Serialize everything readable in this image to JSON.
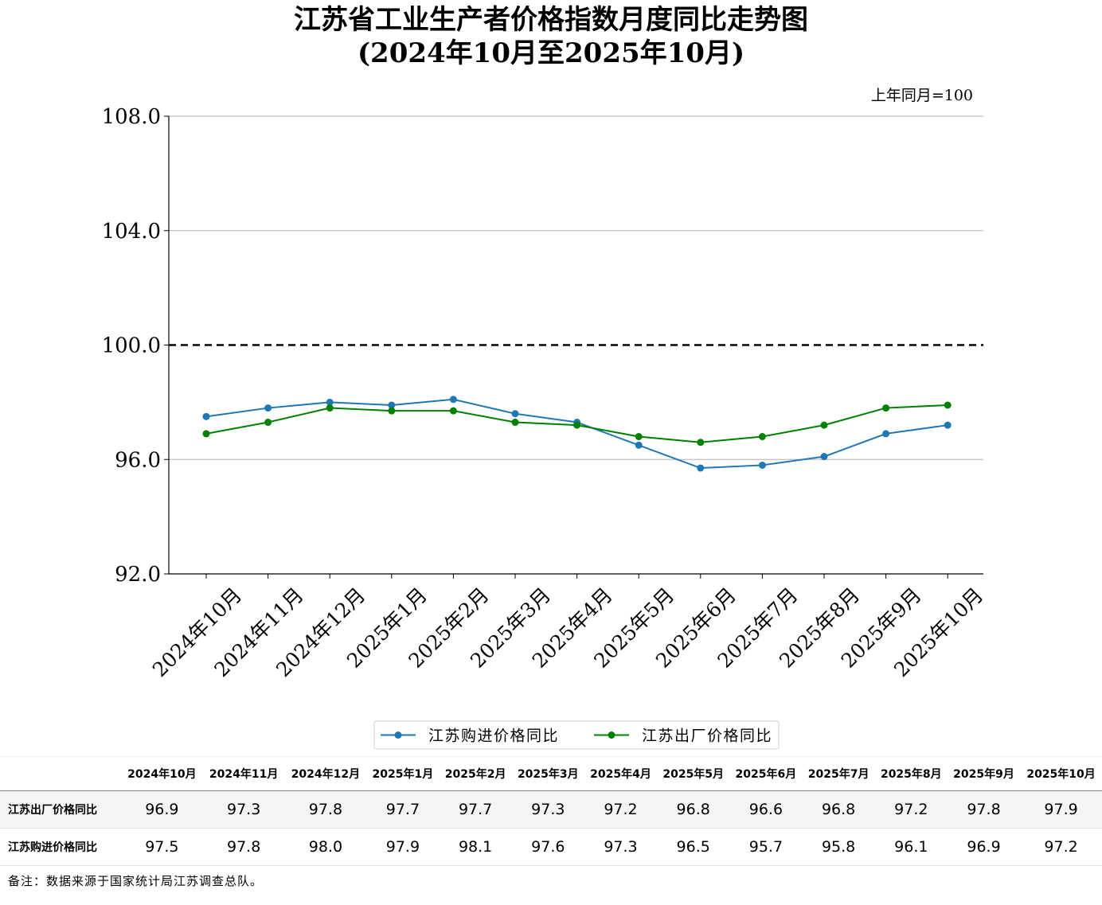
{
  "chart_data": {
    "type": "line",
    "title": "江苏省工业生产者价格指数月度同比走势图",
    "subtitle": "(2024年10月至2025年10月)",
    "unit_note": "上年同月=100",
    "categories": [
      "2024年10月",
      "2024年11月",
      "2024年12月",
      "2025年1月",
      "2025年2月",
      "2025年3月",
      "2025年4月",
      "2025年5月",
      "2025年6月",
      "2025年7月",
      "2025年8月",
      "2025年9月",
      "2025年10月"
    ],
    "series": [
      {
        "name": "江苏购进价格同比",
        "color": "#1f77b4",
        "values": [
          97.5,
          97.8,
          98.0,
          97.9,
          98.1,
          97.6,
          97.3,
          96.5,
          95.7,
          95.8,
          96.1,
          96.9,
          97.2
        ]
      },
      {
        "name": "江苏出厂价格同比",
        "color": "#008000",
        "values": [
          96.9,
          97.3,
          97.8,
          97.7,
          97.7,
          97.3,
          97.2,
          96.8,
          96.6,
          96.8,
          97.2,
          97.8,
          97.9
        ]
      }
    ],
    "ylim": [
      92.0,
      108.0
    ],
    "yticks": [
      "92.0",
      "96.0",
      "100.0",
      "104.0",
      "108.0"
    ],
    "reference_line": 100.0,
    "grid": "horizontal",
    "legend": "bottom-center"
  },
  "table": {
    "headers": [
      "2024年10月",
      "2024年11月",
      "2024年12月",
      "2025年1月",
      "2025年2月",
      "2025年3月",
      "2025年4月",
      "2025年5月",
      "2025年6月",
      "2025年7月",
      "2025年8月",
      "2025年9月",
      "2025年10月"
    ],
    "rows": [
      {
        "label": "江苏出厂价格同比",
        "values": [
          "96.9",
          "97.3",
          "97.8",
          "97.7",
          "97.7",
          "97.3",
          "97.2",
          "96.8",
          "96.6",
          "96.8",
          "97.2",
          "97.8",
          "97.9"
        ]
      },
      {
        "label": "江苏购进价格同比",
        "values": [
          "97.5",
          "97.8",
          "98.0",
          "97.9",
          "98.1",
          "97.6",
          "97.3",
          "96.5",
          "95.7",
          "95.8",
          "96.1",
          "96.9",
          "97.2"
        ]
      }
    ]
  },
  "note": "备注：数据来源于国家统计局江苏调查总队。"
}
